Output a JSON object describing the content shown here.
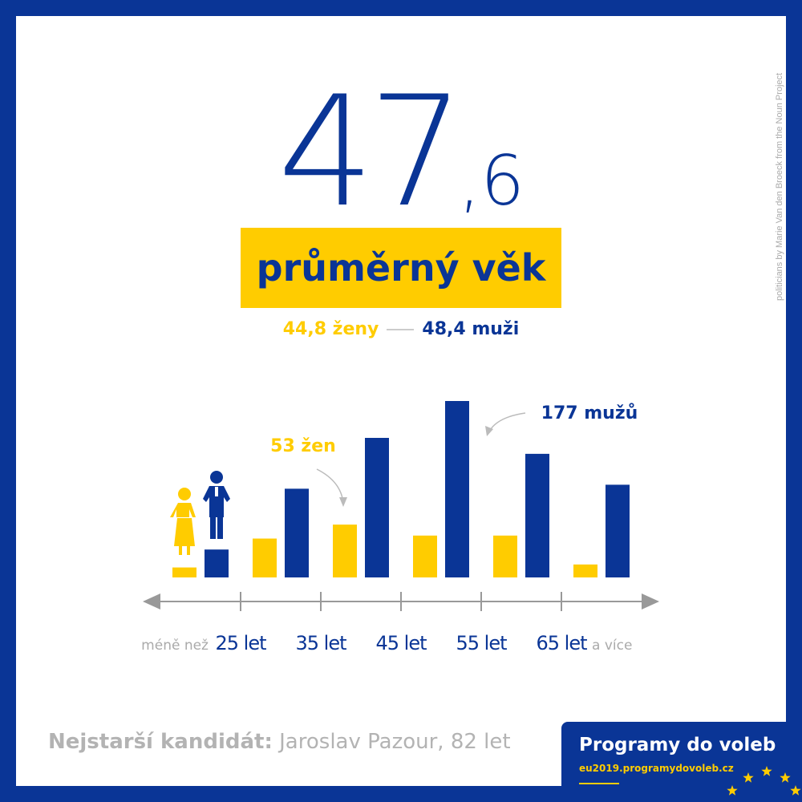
{
  "headline": {
    "value_int": "47",
    "value_frac": ",6",
    "label": "průměrný věk"
  },
  "gender_summary": {
    "women": "44,8 ženy",
    "men": "48,4 muži"
  },
  "credit": "politicians by Marie Van den Broeck from the Noun Project",
  "chart_data": {
    "type": "bar",
    "categories": [
      "méně než 25 let",
      "25–35 let",
      "35–45 let",
      "45–55 let",
      "55–65 let",
      "65 let a více"
    ],
    "series": [
      {
        "name": "ženy",
        "color": "#ffcc00",
        "values": [
          10,
          39,
          53,
          42,
          42,
          13
        ]
      },
      {
        "name": "muži",
        "color": "#0a3596",
        "values": [
          28,
          89,
          140,
          177,
          124,
          93
        ]
      }
    ],
    "axis_labels": [
      {
        "prefix": "méně než",
        "value": "25 let",
        "suffix": ""
      },
      {
        "prefix": "",
        "value": "35 let",
        "suffix": ""
      },
      {
        "prefix": "",
        "value": "45 let",
        "suffix": ""
      },
      {
        "prefix": "",
        "value": "55 let",
        "suffix": ""
      },
      {
        "prefix": "",
        "value": "65 let",
        "suffix": "a více"
      }
    ],
    "annotations": [
      {
        "text": "53 žen",
        "series": "ženy",
        "category_index": 2
      },
      {
        "text": "177 mužů",
        "series": "muži",
        "category_index": 3
      }
    ],
    "ylim": [
      0,
      177
    ]
  },
  "icons": {
    "woman": "woman-politician-icon",
    "man": "man-politician-icon"
  },
  "oldest": {
    "label": "Nejstarší kandidát:",
    "value": "Jaroslav Pazour, 82 let"
  },
  "footer": {
    "title": "Programy do voleb",
    "url": "eu2019.programydovoleb.cz"
  },
  "colors": {
    "navy": "#0a3596",
    "yellow": "#ffcc00",
    "gray": "#999999"
  }
}
